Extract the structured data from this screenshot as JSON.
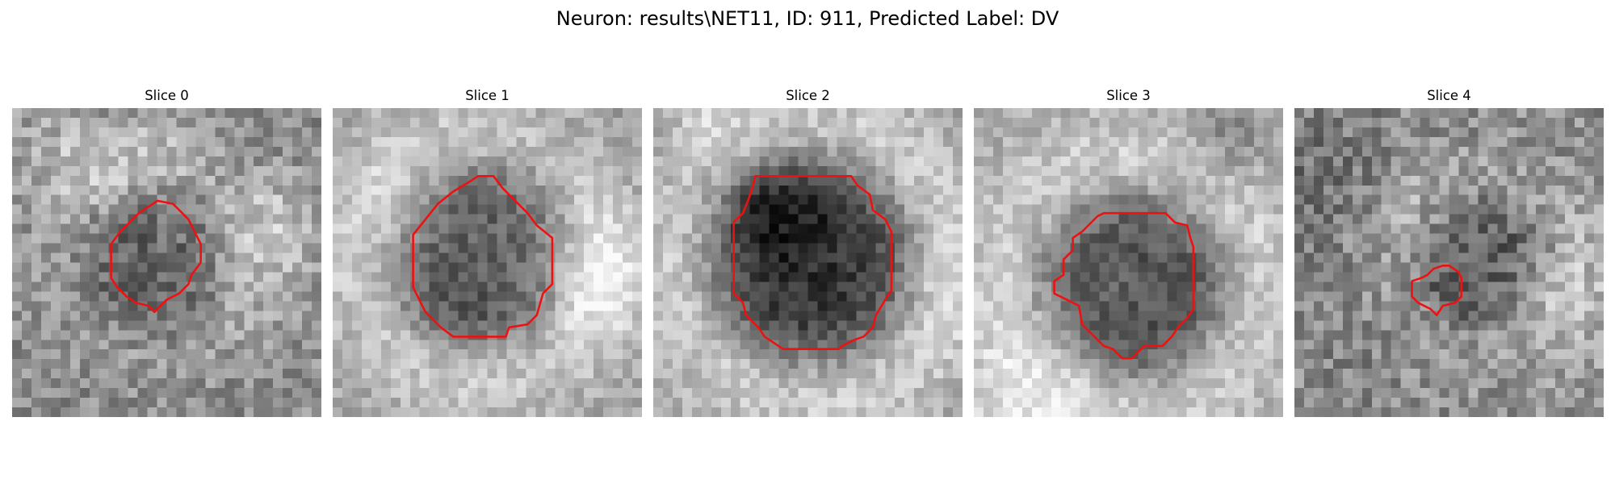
{
  "figure": {
    "title": "Neuron: results\\NET11, ID: 911, Predicted Label: DV",
    "contour_color": "#ee1111"
  },
  "panels": [
    {
      "title": "Slice 0",
      "seed": 17,
      "base_gray": 0.55,
      "blob_depth": 0.18,
      "blob_radius": 0.24,
      "ring_brightness": 0.05,
      "noise": 0.3
    },
    {
      "title": "Slice 1",
      "seed": 29,
      "base_gray": 0.66,
      "blob_depth": 0.42,
      "blob_radius": 0.3,
      "ring_brightness": 0.12,
      "noise": 0.22
    },
    {
      "title": "Slice 2",
      "seed": 41,
      "base_gray": 0.65,
      "blob_depth": 0.44,
      "blob_radius": 0.33,
      "ring_brightness": 0.15,
      "noise": 0.22
    },
    {
      "title": "Slice 3",
      "seed": 53,
      "base_gray": 0.68,
      "blob_depth": 0.4,
      "blob_radius": 0.31,
      "ring_brightness": 0.12,
      "noise": 0.22
    },
    {
      "title": "Slice 4",
      "seed": 67,
      "base_gray": 0.56,
      "blob_depth": 0.28,
      "blob_radius": 0.22,
      "ring_brightness": 0.03,
      "noise": 0.32
    }
  ]
}
